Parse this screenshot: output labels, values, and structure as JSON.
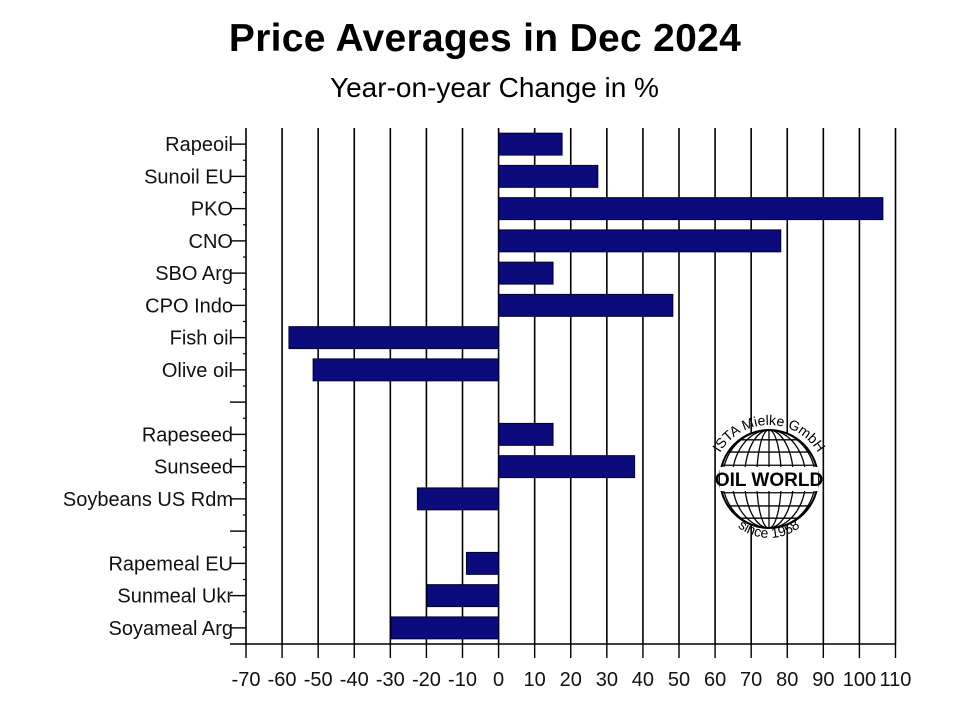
{
  "chart_data": {
    "type": "bar",
    "orientation": "horizontal",
    "title": "Price Averages in Dec 2024",
    "subtitle": "Year-on-year Change in %",
    "xlabel": "",
    "ylabel": "",
    "xlim": [
      -70,
      110
    ],
    "xticks": [
      -70,
      -60,
      -50,
      -40,
      -30,
      -20,
      -10,
      0,
      10,
      20,
      30,
      40,
      50,
      60,
      70,
      80,
      90,
      100,
      110
    ],
    "grid": "vertical",
    "legend": "none",
    "bar_color": "#0b0b7c",
    "categories": [
      "Rapeoil",
      "Sunoil EU",
      "PKO",
      "CNO",
      "SBO Arg",
      "CPO Indo",
      "Fish oil",
      "Olive oil",
      "",
      "Rapeseed",
      "Sunseed",
      "Soybeans US Rdm",
      "",
      "Rapemeal EU",
      "Sunmeal Ukr",
      "Soyameal Arg"
    ],
    "values": [
      17.6,
      27.5,
      106.5,
      78.2,
      15.1,
      48.3,
      -58.1,
      -51.4,
      null,
      15.1,
      37.7,
      -22.5,
      null,
      -8.9,
      -19.8,
      -29.8
    ]
  },
  "logo": {
    "top_text": "ISTA Mielke GmbH",
    "center_text": "OIL WORLD",
    "bottom_text": "since 1958"
  }
}
